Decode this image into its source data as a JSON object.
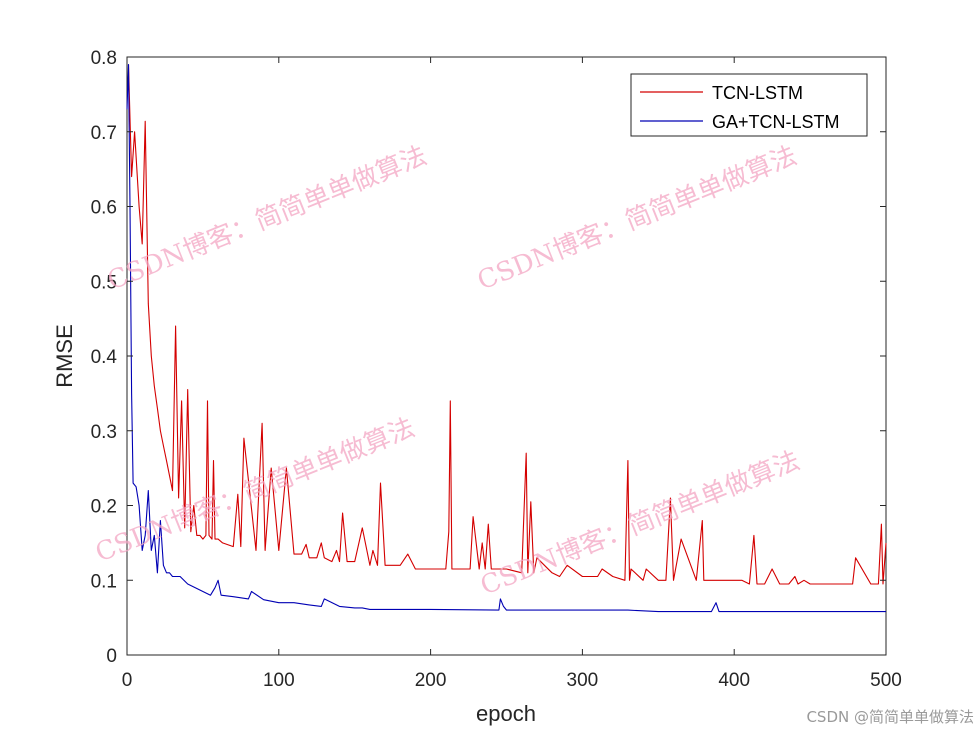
{
  "chart_data": {
    "type": "line",
    "title": "",
    "xlabel": "epoch",
    "ylabel": "RMSE",
    "xlim": [
      0,
      500
    ],
    "ylim": [
      0,
      0.8
    ],
    "xticks": [
      "0",
      "100",
      "200",
      "300",
      "400",
      "500"
    ],
    "yticks": [
      "0",
      "0.1",
      "0.2",
      "0.3",
      "0.4",
      "0.5",
      "0.6",
      "0.7",
      "0.8"
    ],
    "grid": false,
    "legend_position": "top-right",
    "series": [
      {
        "name": "TCN-LSTM",
        "color": "#d40000",
        "x": [
          1,
          3,
          5,
          8,
          10,
          12,
          14,
          16,
          18,
          20,
          22,
          24,
          26,
          28,
          30,
          32,
          34,
          36,
          38,
          40,
          42,
          44,
          46,
          48,
          50,
          52,
          53,
          54,
          56,
          57,
          58,
          60,
          63,
          70,
          73,
          75,
          77,
          85,
          89,
          91,
          95,
          100,
          105,
          110,
          115,
          118,
          120,
          125,
          128,
          130,
          135,
          138,
          140,
          142,
          145,
          150,
          155,
          160,
          162,
          165,
          167,
          170,
          175,
          180,
          185,
          190,
          200,
          210,
          212,
          213,
          214,
          216,
          220,
          226,
          228,
          232,
          234,
          236,
          238,
          240,
          250,
          260,
          263,
          264,
          266,
          268,
          270,
          280,
          285,
          290,
          300,
          310,
          313,
          320,
          328,
          330,
          331,
          332,
          340,
          342,
          350,
          355,
          358,
          360,
          365,
          375,
          379,
          380,
          385,
          400,
          405,
          410,
          413,
          415,
          420,
          425,
          430,
          436,
          440,
          442,
          446,
          450,
          455,
          460,
          465,
          470,
          475,
          478,
          480,
          490,
          493,
          495,
          497,
          498,
          500
        ],
        "y": [
          0.79,
          0.64,
          0.7,
          0.6,
          0.55,
          0.714,
          0.47,
          0.4,
          0.36,
          0.33,
          0.3,
          0.28,
          0.26,
          0.24,
          0.22,
          0.44,
          0.21,
          0.34,
          0.17,
          0.355,
          0.165,
          0.2,
          0.16,
          0.16,
          0.155,
          0.16,
          0.34,
          0.16,
          0.155,
          0.26,
          0.155,
          0.155,
          0.15,
          0.145,
          0.215,
          0.145,
          0.29,
          0.14,
          0.31,
          0.14,
          0.25,
          0.14,
          0.25,
          0.135,
          0.135,
          0.148,
          0.13,
          0.13,
          0.15,
          0.13,
          0.125,
          0.14,
          0.125,
          0.19,
          0.125,
          0.125,
          0.17,
          0.12,
          0.14,
          0.12,
          0.23,
          0.12,
          0.12,
          0.12,
          0.135,
          0.115,
          0.115,
          0.115,
          0.165,
          0.34,
          0.115,
          0.115,
          0.115,
          0.115,
          0.185,
          0.115,
          0.15,
          0.115,
          0.175,
          0.115,
          0.115,
          0.11,
          0.27,
          0.11,
          0.205,
          0.11,
          0.13,
          0.11,
          0.105,
          0.12,
          0.105,
          0.105,
          0.115,
          0.105,
          0.1,
          0.26,
          0.1,
          0.115,
          0.1,
          0.115,
          0.1,
          0.1,
          0.21,
          0.1,
          0.155,
          0.1,
          0.18,
          0.1,
          0.1,
          0.1,
          0.1,
          0.095,
          0.16,
          0.095,
          0.095,
          0.115,
          0.095,
          0.095,
          0.105,
          0.095,
          0.1,
          0.095,
          0.095,
          0.095,
          0.095,
          0.095,
          0.095,
          0.095,
          0.13,
          0.095,
          0.095,
          0.095,
          0.175,
          0.095,
          0.15
        ]
      },
      {
        "name": "GA+TCN-LSTM",
        "color": "#0000b4",
        "x": [
          0,
          1,
          2,
          3,
          4,
          6,
          8,
          10,
          12,
          14,
          16,
          18,
          20,
          22,
          24,
          26,
          28,
          30,
          35,
          40,
          45,
          50,
          55,
          58,
          60,
          62,
          70,
          80,
          82,
          90,
          100,
          110,
          120,
          128,
          130,
          140,
          150,
          155,
          160,
          200,
          245,
          246,
          248,
          250,
          260,
          270,
          300,
          330,
          350,
          385,
          388,
          390,
          400,
          450,
          500
        ],
        "y": [
          0.73,
          0.79,
          0.6,
          0.35,
          0.23,
          0.225,
          0.2,
          0.14,
          0.16,
          0.22,
          0.14,
          0.16,
          0.11,
          0.18,
          0.12,
          0.11,
          0.11,
          0.105,
          0.105,
          0.095,
          0.09,
          0.085,
          0.08,
          0.09,
          0.1,
          0.08,
          0.078,
          0.075,
          0.085,
          0.074,
          0.07,
          0.07,
          0.067,
          0.065,
          0.075,
          0.065,
          0.063,
          0.063,
          0.061,
          0.061,
          0.06,
          0.075,
          0.065,
          0.06,
          0.06,
          0.06,
          0.06,
          0.06,
          0.058,
          0.058,
          0.07,
          0.058,
          0.058,
          0.058,
          0.058
        ]
      }
    ]
  },
  "watermarks": [
    "CSDN博客：简简单单做算法",
    "CSDN博客：简简单单做算法",
    "CSDN博客：简简单单做算法",
    "CSDN博客：简简单单做算法"
  ],
  "corner_watermark": "CSDN @简简单单做算法"
}
